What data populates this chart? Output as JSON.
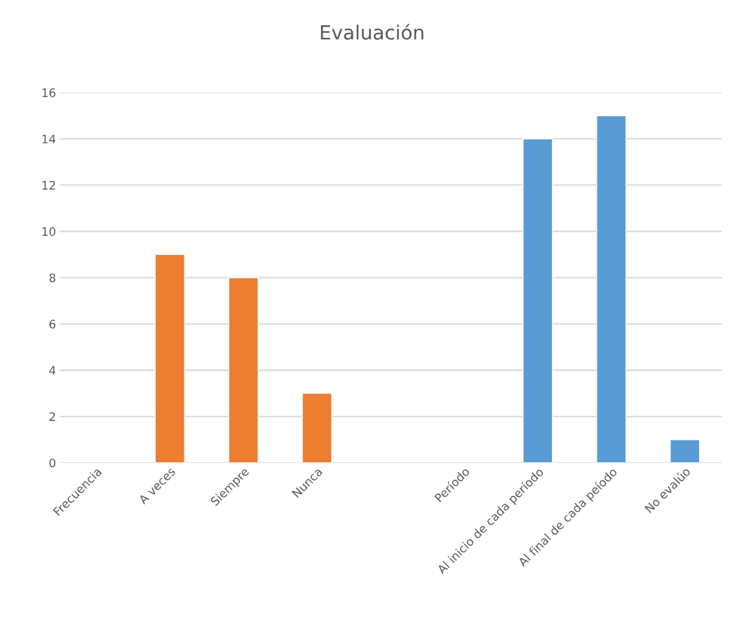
{
  "chart_data": {
    "type": "bar",
    "title": "Evaluación",
    "categories": [
      "Frecuencia",
      "A veces",
      "Siempre",
      "Nunca",
      null,
      "Período",
      "Al inicio de cada período",
      "Al final de cada peíodo",
      "No evalúo"
    ],
    "values": [
      null,
      9,
      8,
      3,
      null,
      null,
      14,
      15,
      1
    ],
    "colors": [
      "#ed7d31",
      "#ed7d31",
      "#ed7d31",
      "#ed7d31",
      "#ed7d31",
      "#5b9bd5",
      "#5b9bd5",
      "#5b9bd5",
      "#5b9bd5"
    ],
    "ylim": [
      0,
      16
    ],
    "yticks": [
      0,
      2,
      4,
      6,
      8,
      10,
      12,
      14,
      16
    ],
    "grid": "y",
    "legend": false
  }
}
